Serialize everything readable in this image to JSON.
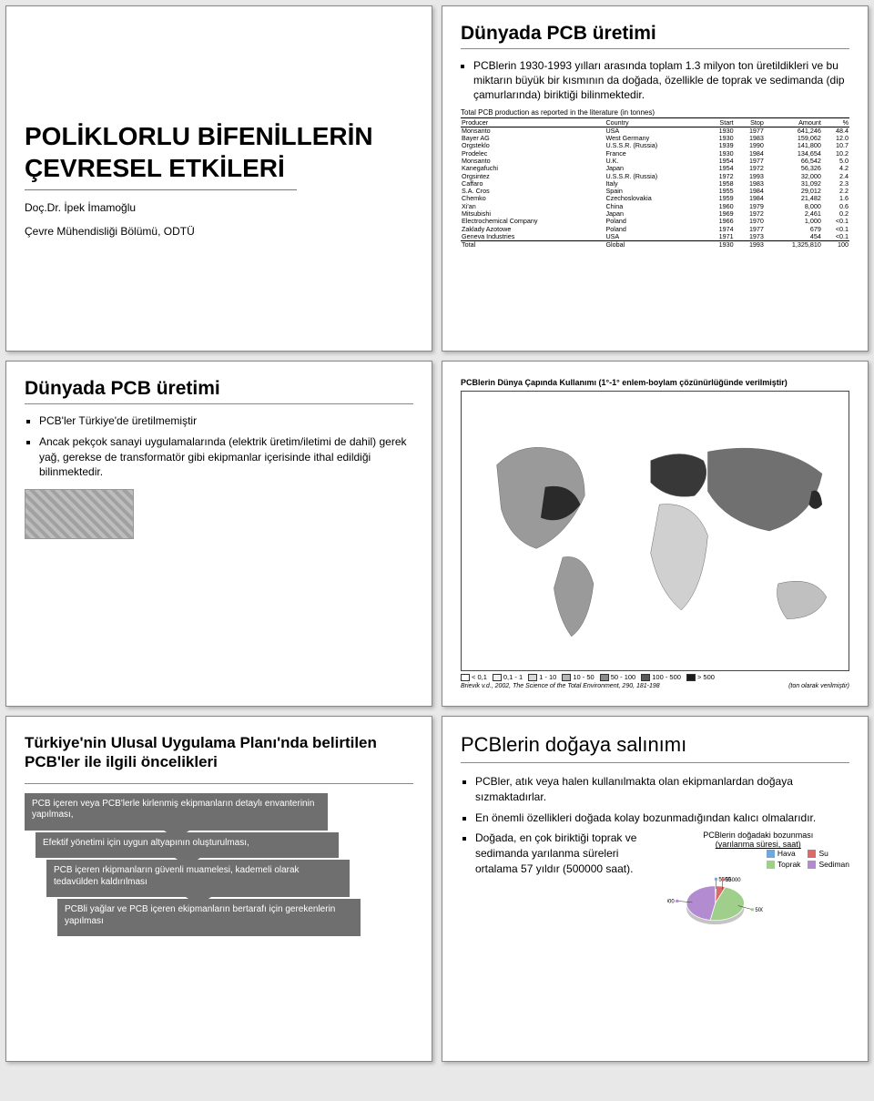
{
  "slide1": {
    "main_lines": [
      "POLİKLORLU BİFENİLLERİN",
      "ÇEVRESEL ETKİLERİ"
    ],
    "author": "Doç.Dr. İpek İmamoğlu",
    "affil": "Çevre Mühendisliği Bölümü, ODTÜ"
  },
  "slide2": {
    "title": "Dünyada PCB üretimi",
    "bullets": [
      "PCBlerin 1930-1993 yılları arasında toplam 1.3 milyon ton üretildikleri ve bu miktarın büyük bir kısmının da doğada, özellikle de toprak ve sedimanda (dip çamurlarında) biriktiği bilinmektedir."
    ],
    "table_caption": "Total PCB production as reported in the literature (in tonnes)",
    "columns": [
      "Producer",
      "Country",
      "Start",
      "Stop",
      "Amount",
      "%"
    ],
    "rows": [
      [
        "Monsanto",
        "USA",
        "1930",
        "1977",
        "641,246",
        "48.4"
      ],
      [
        "Bayer AG",
        "West Germany",
        "1930",
        "1983",
        "159,062",
        "12.0"
      ],
      [
        "Orgsteklo",
        "U.S.S.R. (Russia)",
        "1939",
        "1990",
        "141,800",
        "10.7"
      ],
      [
        "Prodelec",
        "France",
        "1930",
        "1984",
        "134,654",
        "10.2"
      ],
      [
        "Monsanto",
        "U.K.",
        "1954",
        "1977",
        "66,542",
        "5.0"
      ],
      [
        "Kanegafuchi",
        "Japan",
        "1954",
        "1972",
        "56,326",
        "4.2"
      ],
      [
        "Orgsintez",
        "U.S.S.R. (Russia)",
        "1972",
        "1993",
        "32,000",
        "2.4"
      ],
      [
        "Caffaro",
        "Italy",
        "1958",
        "1983",
        "31,092",
        "2.3"
      ],
      [
        "S.A. Cros",
        "Spain",
        "1955",
        "1984",
        "29,012",
        "2.2"
      ],
      [
        "Chemko",
        "Czechoslovakia",
        "1959",
        "1984",
        "21,482",
        "1.6"
      ],
      [
        "Xi'an",
        "China",
        "1960",
        "1979",
        "8,000",
        "0.6"
      ],
      [
        "Mitsubishi",
        "Japan",
        "1969",
        "1972",
        "2,461",
        "0.2"
      ],
      [
        "Electrochemical Company",
        "Poland",
        "1966",
        "1970",
        "1,000",
        "<0.1"
      ],
      [
        "Zaklady Azotowe",
        "Poland",
        "1974",
        "1977",
        "679",
        "<0.1"
      ],
      [
        "Geneva Industries",
        "USA",
        "1971",
        "1973",
        "454",
        "<0.1"
      ]
    ],
    "total_row": [
      "Total",
      "Global",
      "1930",
      "1993",
      "1,325,810",
      "100"
    ]
  },
  "slide3": {
    "title": "Dünyada PCB üretimi",
    "bullets": [
      "PCB'ler Türkiye'de üretilmemiştir",
      "Ancak pekçok sanayi uygulamalarında (elektrik üretim/iletimi de dahil) gerek yağ, gerekse de transformatör gibi ekipmanlar içerisinde ithal edildiği bilinmektedir."
    ]
  },
  "slide4": {
    "title": "PCBlerin Dünya Çapında Kullanımı (1°-1° enlem-boylam çözünürlüğünde verilmiştir)",
    "legend_ticks": [
      "< 0,1",
      "0,1 - 1",
      "1 - 10",
      "10 - 50",
      "50 - 100",
      "100 - 500",
      "> 500"
    ],
    "legend_colors": [
      "#ffffff",
      "#f0f0f0",
      "#d8d8d8",
      "#b5b5b5",
      "#8a8a8a",
      "#585858",
      "#1a1a1a"
    ],
    "note_cite": "Brievik v.d., 2002, The Science of the Total Environment, 290, 181-198",
    "note_right": "(ton olarak verilmiştir)"
  },
  "slide5": {
    "title": "Türkiye'nin Ulusal Uygulama Planı'nda belirtilen PCB'ler ile ilgili öncelikleri",
    "steps": [
      "PCB içeren veya PCB'lerle kirlenmiş ekipmanların detaylı envanterinin yapılması,",
      "Efektif yönetimi için uygun altyapının oluşturulması,",
      "PCB içeren rkipmanların güvenli muamelesi, kademeli olarak tedavülden kaldırılması",
      "PCBli yağlar ve PCB içeren ekipmanların bertarafı için gerekenlerin yapılması"
    ]
  },
  "slide6": {
    "title": "PCBlerin doğaya salınımı",
    "bullets": [
      "PCBler, atık veya halen kullanılmakta olan ekipmanlardan doğaya sızmaktadırlar.",
      "En önemli özellikleri doğada kolay bozunmadığından kalıcı olmalarıdır."
    ],
    "left_continued": "Doğada, en çok biriktiği toprak ve sedimanda yarılanma süreleri ortalama 57 yıldır (500000 saat).",
    "chart_title": "PCBlerin doğadaki bozunması",
    "chart_sub": "(yarılanma süresi, saat)",
    "pie": {
      "labels": [
        "Hava",
        "Su",
        "Toprak",
        "Sediman"
      ],
      "values": [
        5500,
        55000,
        500000,
        500000
      ],
      "colors": [
        "#6fa8dc",
        "#d96b6b",
        "#9fcf8a",
        "#b28bd1"
      ]
    },
    "callout_labels": [
      "5500",
      "55000",
      "500000",
      "500000"
    ]
  }
}
